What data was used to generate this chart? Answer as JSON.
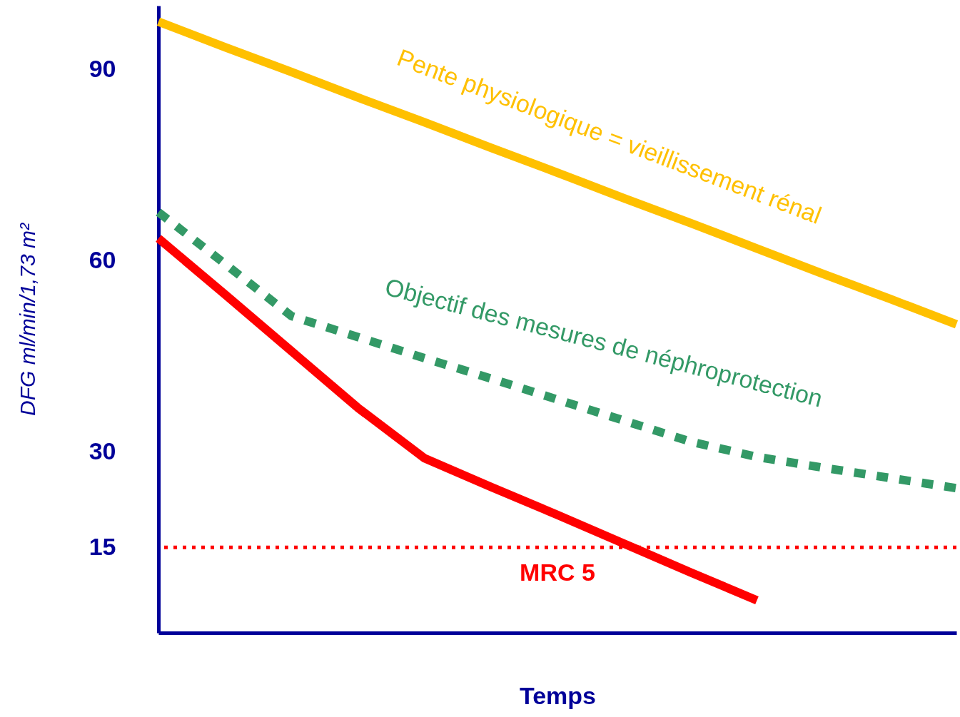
{
  "chart_data": {
    "type": "line",
    "xlabel": "Temps",
    "ylabel": "DFG ml/min/1,73 m²",
    "categories": [
      null,
      null,
      null,
      null,
      null,
      null,
      null,
      null,
      null,
      null,
      null,
      null,
      null
    ],
    "ylim": [
      1.6,
      100
    ],
    "yticks": [
      15,
      30,
      60,
      90
    ],
    "tick_labels": "y",
    "grid": false,
    "legend": false,
    "marker": "none",
    "series": [
      {
        "name": "Pente physiologique = vieillissement rénal",
        "color": "#ffc000",
        "line_style": "solid",
        "values": [
          97.5,
          93.5,
          89.6,
          85.6,
          81.7,
          77.7,
          73.8,
          69.8,
          65.9,
          61.9,
          57.9,
          54.0,
          50.0
        ]
      },
      {
        "name": "Objectif des mesures de néphroprotection",
        "color": "#339966",
        "line_style": "dashed",
        "values": [
          67.6,
          59.5,
          51.3,
          48.0,
          44.7,
          41.5,
          38.2,
          34.9,
          31.6,
          29.2,
          27.5,
          25.9,
          24.3
        ]
      },
      {
        "color": "#ff0000",
        "line_style": "solid",
        "values": [
          63.5,
          54.7,
          45.8,
          36.9,
          29.0,
          24.5,
          20.1,
          15.6,
          11.1,
          6.7,
          null,
          null,
          null
        ]
      }
    ],
    "ref_lines": [
      {
        "axis": "y",
        "value": 15,
        "label": "MRC 5",
        "color": "#ff0000",
        "line_style": "dotted"
      }
    ]
  }
}
